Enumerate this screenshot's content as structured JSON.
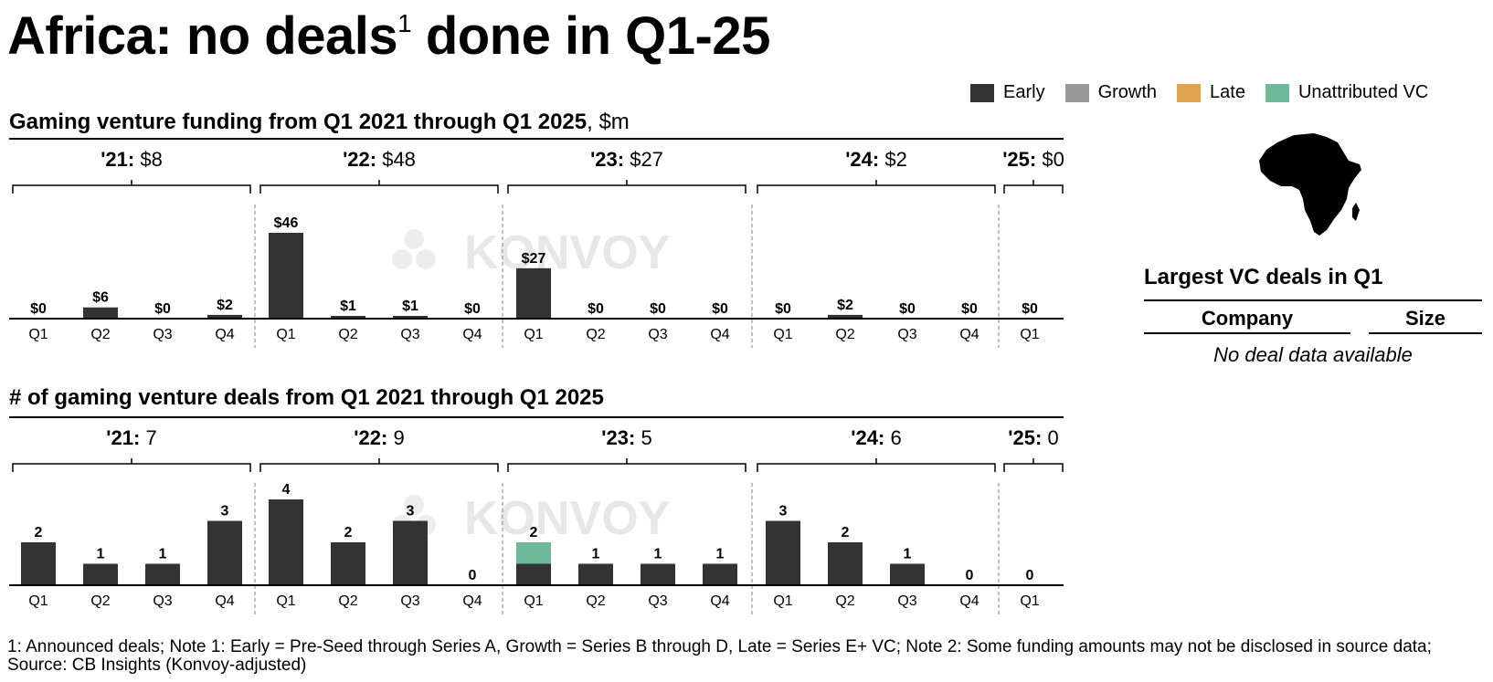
{
  "title": {
    "main": "Africa: no deals",
    "sup": "1",
    "rest": " done in Q1-25"
  },
  "legend": [
    {
      "label": "Early",
      "color": "#333333"
    },
    {
      "label": "Growth",
      "color": "#999999"
    },
    {
      "label": "Late",
      "color": "#E0A450"
    },
    {
      "label": "Unattributed VC",
      "color": "#6FB99B"
    }
  ],
  "chart_data": [
    {
      "type": "bar",
      "title": "Gaming venture funding from Q1 2021 through Q1 2025",
      "unit": ", $m",
      "groups": [
        {
          "year": "'21:",
          "total": "$8",
          "quarters": [
            "Q1",
            "Q2",
            "Q3",
            "Q4"
          ],
          "values": [
            0,
            6,
            0,
            2
          ],
          "labels": [
            "$0",
            "$6",
            "$0",
            "$2"
          ]
        },
        {
          "year": "'22:",
          "total": "$48",
          "quarters": [
            "Q1",
            "Q2",
            "Q3",
            "Q4"
          ],
          "values": [
            46,
            1,
            1,
            0
          ],
          "labels": [
            "$46",
            "$1",
            "$1",
            "$0"
          ]
        },
        {
          "year": "'23:",
          "total": "$27",
          "quarters": [
            "Q1",
            "Q2",
            "Q3",
            "Q4"
          ],
          "values": [
            27,
            0,
            0,
            0
          ],
          "labels": [
            "$27",
            "$0",
            "$0",
            "$0"
          ]
        },
        {
          "year": "'24:",
          "total": "$2",
          "quarters": [
            "Q1",
            "Q2",
            "Q3",
            "Q4"
          ],
          "values": [
            0,
            2,
            0,
            0
          ],
          "labels": [
            "$0",
            "$2",
            "$0",
            "$0"
          ]
        },
        {
          "year": "'25:",
          "total": "$0",
          "quarters": [
            "Q1"
          ],
          "values": [
            0
          ],
          "labels": [
            "$0"
          ]
        }
      ],
      "ylim": [
        0,
        46
      ],
      "watermark": "KONVOY"
    },
    {
      "type": "bar",
      "title": "# of gaming venture deals from Q1 2021 through Q1 2025",
      "groups": [
        {
          "year": "'21:",
          "total": "7",
          "quarters": [
            "Q1",
            "Q2",
            "Q3",
            "Q4"
          ],
          "values": [
            2,
            1,
            1,
            3
          ],
          "unattributed": [
            0,
            0,
            0,
            0
          ]
        },
        {
          "year": "'22:",
          "total": "9",
          "quarters": [
            "Q1",
            "Q2",
            "Q3",
            "Q4"
          ],
          "values": [
            4,
            2,
            3,
            0
          ],
          "unattributed": [
            0,
            0,
            0,
            0
          ]
        },
        {
          "year": "'23:",
          "total": "5",
          "quarters": [
            "Q1",
            "Q2",
            "Q3",
            "Q4"
          ],
          "values": [
            2,
            1,
            1,
            1
          ],
          "unattributed": [
            1,
            0,
            0,
            0
          ]
        },
        {
          "year": "'24:",
          "total": "6",
          "quarters": [
            "Q1",
            "Q2",
            "Q3",
            "Q4"
          ],
          "values": [
            3,
            2,
            1,
            0
          ],
          "unattributed": [
            0,
            0,
            0,
            0
          ]
        },
        {
          "year": "'25:",
          "total": "0",
          "quarters": [
            "Q1"
          ],
          "values": [
            0
          ],
          "unattributed": [
            0
          ]
        }
      ],
      "ylim": [
        0,
        4
      ],
      "watermark": "KONVOY"
    }
  ],
  "deals": {
    "title": "Largest VC deals in Q1",
    "col_company": "Company",
    "col_size": "Size",
    "empty": "No deal data available"
  },
  "footnote": "1: Announced deals; Note 1: Early = Pre-Seed through Series A, Growth = Series B through D, Late = Series E+ VC; Note 2: Some funding amounts may not be disclosed in source data; Source: CB Insights (Konvoy-adjusted)"
}
